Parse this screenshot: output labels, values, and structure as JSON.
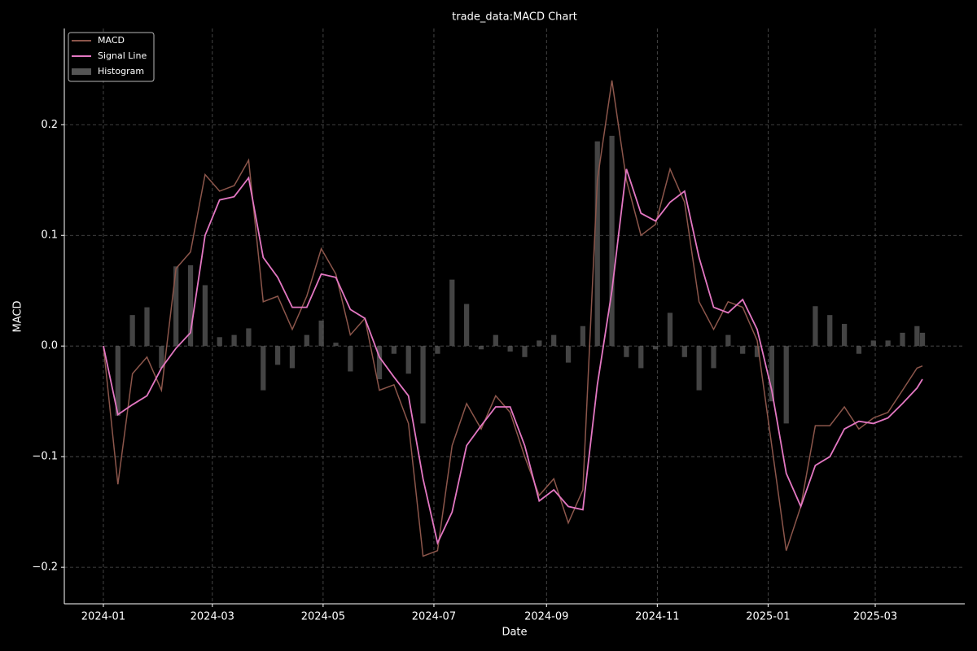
{
  "chart_data": {
    "type": "line",
    "title": "trade_data:MACD Chart",
    "x_label": "Date",
    "y_label": "MACD",
    "x": [
      0,
      8,
      16,
      24,
      32,
      40,
      48,
      56,
      64,
      72,
      80,
      88,
      96,
      104,
      112,
      120,
      128,
      136,
      144,
      152,
      160,
      168,
      176,
      184,
      192,
      200,
      208,
      216,
      224,
      232,
      240,
      248,
      256,
      264,
      272,
      280,
      288,
      296,
      304,
      312,
      320,
      328,
      336,
      344,
      352,
      360,
      368,
      376,
      384,
      392,
      400,
      408,
      416,
      424,
      432,
      440,
      448,
      451
    ],
    "series": [
      {
        "name": "MACD",
        "color": "#8c564b",
        "type": "line",
        "values": [
          0,
          -0.125,
          -0.025,
          -0.01,
          -0.04,
          0.07,
          0.085,
          0.155,
          0.14,
          0.145,
          0.168,
          0.04,
          0.045,
          0.015,
          0.045,
          0.088,
          0.065,
          0.01,
          0.025,
          -0.04,
          -0.035,
          -0.07,
          -0.19,
          -0.185,
          -0.09,
          -0.052,
          -0.075,
          -0.045,
          -0.06,
          -0.1,
          -0.135,
          -0.12,
          -0.16,
          -0.13,
          0.15,
          0.24,
          0.15,
          0.1,
          0.11,
          0.16,
          0.13,
          0.04,
          0.015,
          0.04,
          0.035,
          0.005,
          -0.09,
          -0.185,
          -0.145,
          -0.072,
          -0.072,
          -0.055,
          -0.075,
          -0.065,
          -0.06,
          -0.04,
          -0.02,
          -0.018
        ]
      },
      {
        "name": "Signal Line",
        "color": "#e377c2",
        "type": "line",
        "values": [
          0,
          -0.062,
          -0.053,
          -0.045,
          -0.02,
          -0.002,
          0.012,
          0.1,
          0.132,
          0.135,
          0.152,
          0.08,
          0.062,
          0.035,
          0.035,
          0.065,
          0.062,
          0.033,
          0.025,
          -0.01,
          -0.028,
          -0.045,
          -0.12,
          -0.178,
          -0.15,
          -0.09,
          -0.072,
          -0.055,
          -0.055,
          -0.09,
          -0.14,
          -0.13,
          -0.145,
          -0.148,
          -0.035,
          0.05,
          0.16,
          0.12,
          0.113,
          0.13,
          0.14,
          0.08,
          0.035,
          0.03,
          0.042,
          0.015,
          -0.04,
          -0.115,
          -0.145,
          -0.108,
          -0.1,
          -0.075,
          -0.068,
          -0.07,
          -0.065,
          -0.052,
          -0.038,
          -0.03
        ]
      },
      {
        "name": "Histogram",
        "color": "#555555",
        "type": "bar",
        "values": [
          0,
          -0.063,
          0.028,
          0.035,
          -0.02,
          0.072,
          0.073,
          0.055,
          0.008,
          0.01,
          0.016,
          -0.04,
          -0.017,
          -0.02,
          0.01,
          0.023,
          0.003,
          -0.023,
          0,
          -0.03,
          -0.007,
          -0.025,
          -0.07,
          -0.007,
          0.06,
          0.038,
          -0.003,
          0.01,
          -0.005,
          -0.01,
          0.005,
          0.01,
          -0.015,
          0.018,
          0.185,
          0.19,
          -0.01,
          -0.02,
          -0.003,
          0.03,
          -0.01,
          -0.04,
          -0.02,
          0.01,
          -0.007,
          -0.01,
          -0.05,
          -0.07,
          0,
          0.036,
          0.028,
          0.02,
          -0.007,
          0.005,
          0.005,
          0.012,
          0.018,
          0.012
        ]
      }
    ],
    "xlim": [
      -21.5,
      474.3
    ],
    "xticks": [
      {
        "value": 0,
        "label": "2024-01"
      },
      {
        "value": 60,
        "label": "2024-03"
      },
      {
        "value": 121,
        "label": "2024-05"
      },
      {
        "value": 182,
        "label": "2024-07"
      },
      {
        "value": 244,
        "label": "2024-09"
      },
      {
        "value": 305,
        "label": "2024-11"
      },
      {
        "value": 366,
        "label": "2025-01"
      },
      {
        "value": 425,
        "label": "2025-03"
      }
    ],
    "ylim": [
      -0.233,
      0.287
    ],
    "yticks": [
      {
        "value": -0.2,
        "label": "−0.2"
      },
      {
        "value": -0.1,
        "label": "−0.1"
      },
      {
        "value": 0,
        "label": "0.0"
      },
      0.1,
      0.2
    ],
    "grid": true,
    "legend": "upper-left"
  }
}
